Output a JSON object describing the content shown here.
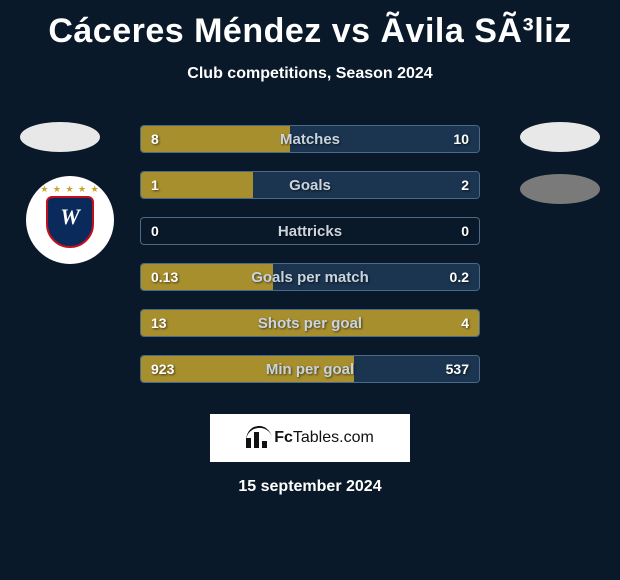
{
  "title": "Cáceres Méndez vs Ãvila SÃ³liz",
  "subtitle": "Club competitions, Season 2024",
  "date": "15 september 2024",
  "footer_brand": {
    "prefix": "Fc",
    "suffix": "Tables.com"
  },
  "colors": {
    "background": "#0a1929",
    "left_fill": "#a88f2e",
    "right_fill": "#a88f2e",
    "neutral_fill": "#1b3550",
    "label_text": "#c9d4df",
    "border": "#4a6a8a",
    "badge_light": "#e8e8e8",
    "badge_dark": "#7a7a7a"
  },
  "rows": [
    {
      "label": "Matches",
      "lval": "8",
      "rval": "10",
      "lpct": 44,
      "rpct": 56,
      "lfill": "#a88f2e",
      "rfill": "#1b3550"
    },
    {
      "label": "Goals",
      "lval": "1",
      "rval": "2",
      "lpct": 33,
      "rpct": 67,
      "lfill": "#a88f2e",
      "rfill": "#1b3550"
    },
    {
      "label": "Hattricks",
      "lval": "0",
      "rval": "0",
      "lpct": 0,
      "rpct": 0,
      "lfill": "#1b3550",
      "rfill": "#1b3550"
    },
    {
      "label": "Goals per match",
      "lval": "0.13",
      "rval": "0.2",
      "lpct": 39,
      "rpct": 61,
      "lfill": "#a88f2e",
      "rfill": "#1b3550"
    },
    {
      "label": "Shots per goal",
      "lval": "13",
      "rval": "4",
      "lpct": 76,
      "rpct": 24,
      "lfill": "#a88f2e",
      "rfill": "#a88f2e"
    },
    {
      "label": "Min per goal",
      "lval": "923",
      "rval": "537",
      "lpct": 63,
      "rpct": 37,
      "lfill": "#a88f2e",
      "rfill": "#1b3550"
    }
  ]
}
